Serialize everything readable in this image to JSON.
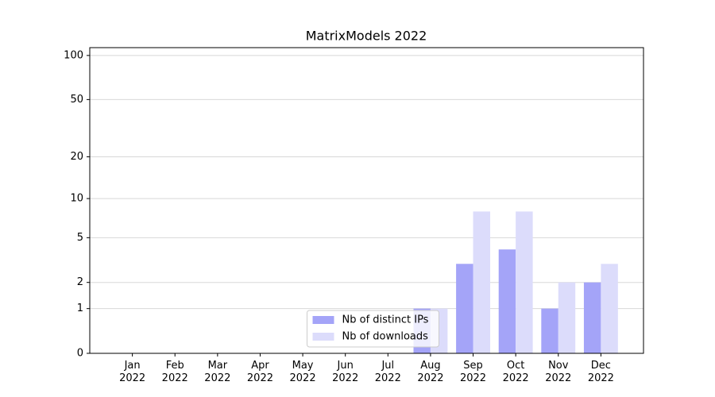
{
  "chart_data": {
    "type": "bar",
    "title": "MatrixModels 2022",
    "categories": [
      "Jan 2022",
      "Feb 2022",
      "Mar 2022",
      "Apr 2022",
      "May 2022",
      "Jun 2022",
      "Jul 2022",
      "Aug 2022",
      "Sep 2022",
      "Oct 2022",
      "Nov 2022",
      "Dec 2022"
    ],
    "series": [
      {
        "name": "Nb of distinct IPs",
        "color": "#a4a4f8",
        "values": [
          0,
          0,
          0,
          0,
          0,
          0,
          0,
          1,
          3,
          4,
          1,
          2
        ]
      },
      {
        "name": "Nb of downloads",
        "color": "#dcdcfb",
        "values": [
          0,
          0,
          0,
          0,
          0,
          0,
          0,
          1,
          8,
          8,
          2,
          3
        ]
      }
    ],
    "yscale": "log1p",
    "ylim": [
      0,
      113
    ],
    "yticks": [
      0,
      1,
      2,
      5,
      10,
      20,
      50,
      100
    ],
    "grid": true,
    "legend": "lower center"
  }
}
